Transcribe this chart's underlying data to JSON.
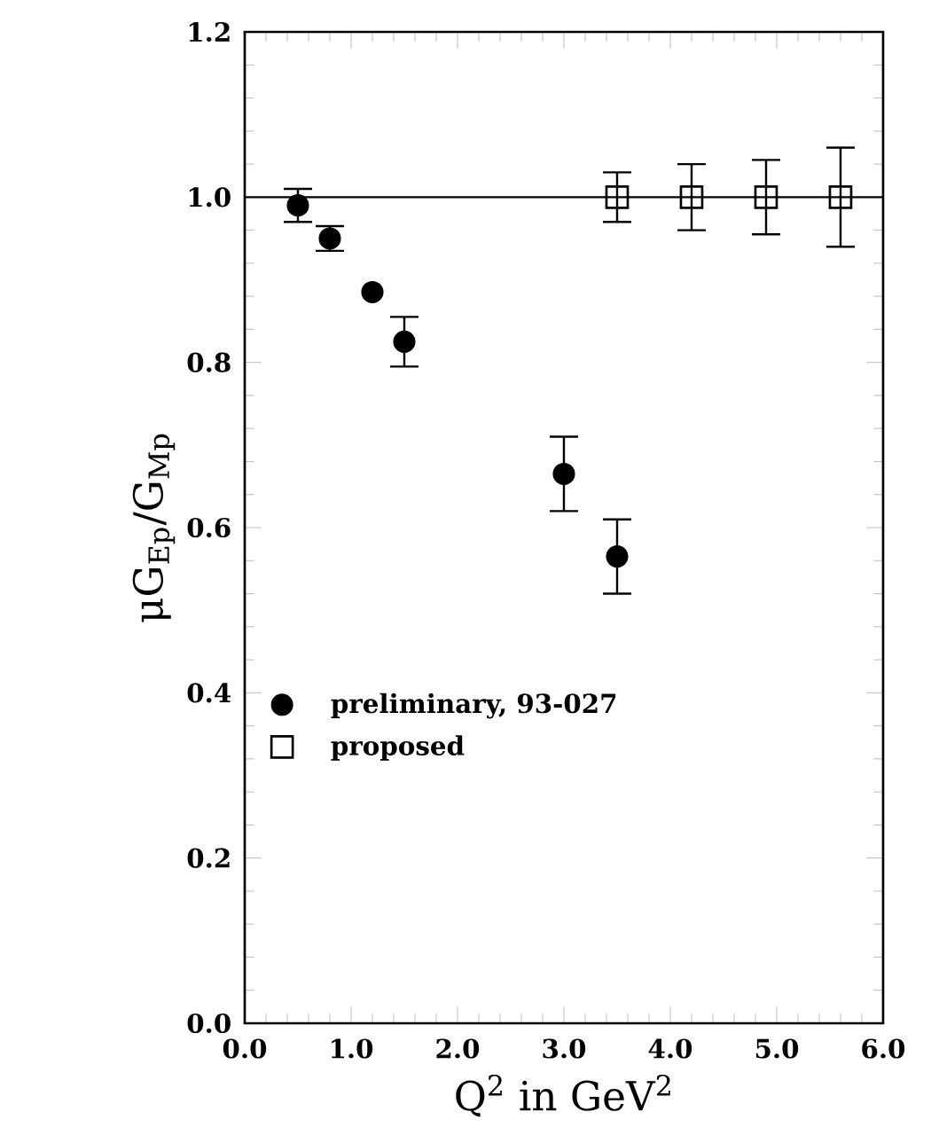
{
  "chart_data": {
    "type": "scatter",
    "xlabel": "Q$^{2}$ in GeV$^{2}$",
    "ylabel": "μG$_{Ep}$/G$_{Mp}$",
    "xlim": [
      0,
      6
    ],
    "ylim": [
      0,
      1.2
    ],
    "xticks": [
      {
        "value": 0,
        "label": "0.0"
      },
      {
        "value": 1,
        "label": "1.0"
      },
      {
        "value": 2,
        "label": "2.0"
      },
      {
        "value": 3,
        "label": "3.0"
      },
      {
        "value": 4,
        "label": "4.0"
      },
      {
        "value": 5,
        "label": "5.0"
      },
      {
        "value": 6,
        "label": "6.0"
      }
    ],
    "yticks": [
      {
        "value": 0,
        "label": "0.0"
      },
      {
        "value": 0.2,
        "label": "0.2"
      },
      {
        "value": 0.4,
        "label": "0.4"
      },
      {
        "value": 0.6,
        "label": "0.6"
      },
      {
        "value": 0.8,
        "label": "0.8"
      },
      {
        "value": 1.0,
        "label": "1.0"
      },
      {
        "value": 1.2,
        "label": "1.2"
      }
    ],
    "series": [
      {
        "name": "preliminary, 93-027",
        "color": "#000000",
        "marker": "circle",
        "x": [
          0.5,
          0.8,
          1.2,
          1.5,
          3.0,
          3.5
        ],
        "values": [
          0.99,
          0.95,
          0.885,
          0.825,
          0.665,
          0.565
        ],
        "errors": [
          0.02,
          0.015,
          null,
          0.03,
          0.045,
          0.045
        ]
      },
      {
        "name": "proposed",
        "color": "#000000",
        "marker": "square",
        "x": [
          3.5,
          4.2,
          4.9,
          5.6
        ],
        "values": [
          1.0,
          1.0,
          1.0,
          1.0
        ],
        "errors": [
          0.03,
          0.04,
          0.045,
          0.06
        ]
      }
    ],
    "ref_lines": [
      {
        "axis": "y",
        "value": 1.0
      }
    ],
    "legend": "left",
    "grid": false
  }
}
